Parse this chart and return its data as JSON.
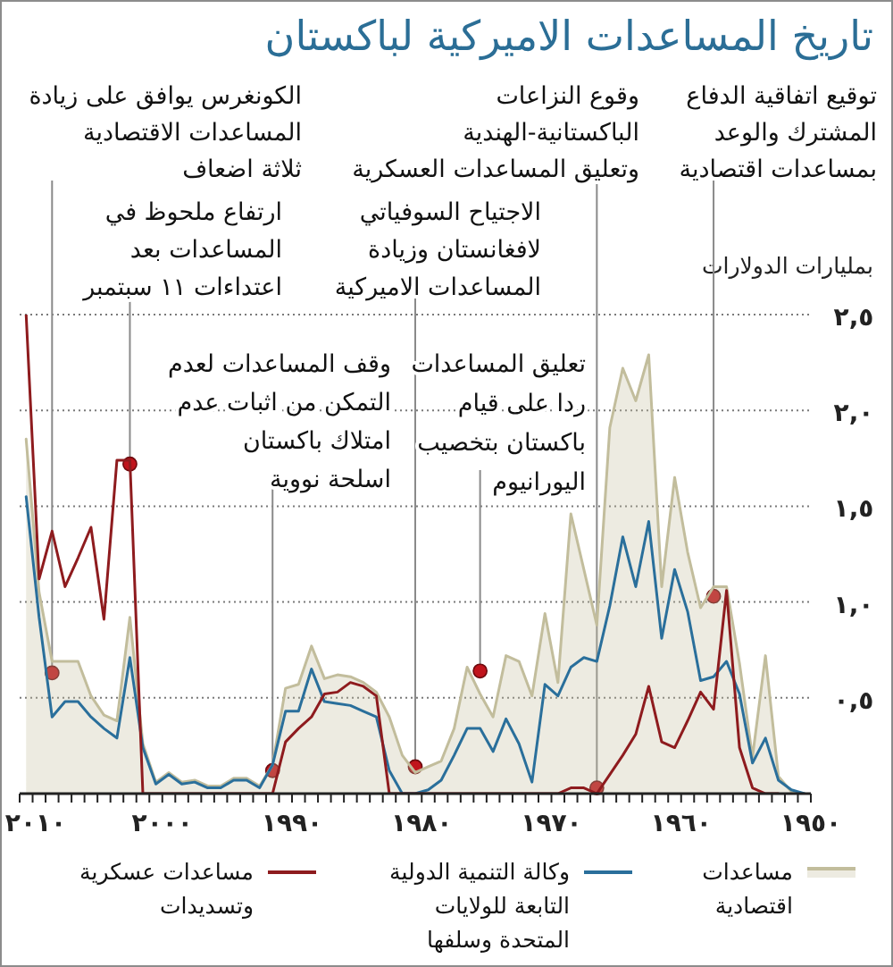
{
  "chart_data": {
    "type": "line",
    "title": "تاريخ المساعدات الاميركية لباكستان",
    "ylabel": "بمليارات الدولارات",
    "x": [
      2010.5,
      2009.5,
      2008.5,
      2007.5,
      2006.5,
      2005.5,
      2004.5,
      2003.5,
      2002.5,
      2001.5,
      2000.5,
      1999.5,
      1998.5,
      1997.5,
      1996.5,
      1995.5,
      1994.5,
      1993.5,
      1992.5,
      1991.5,
      1990.5,
      1989.5,
      1988.5,
      1987.5,
      1986.5,
      1985.5,
      1984.5,
      1983.5,
      1982.5,
      1981.5,
      1980.5,
      1979.5,
      1978.5,
      1977.5,
      1976.5,
      1975.5,
      1974.5,
      1973.5,
      1972.5,
      1971.5,
      1970.5,
      1969.5,
      1968.5,
      1967.5,
      1966.5,
      1965.5,
      1964.5,
      1963.5,
      1962.5,
      1961.5,
      1960.5,
      1959.5,
      1958.5,
      1957.5,
      1956.5,
      1955.5,
      1954.5,
      1953.5,
      1952.5,
      1951.5,
      1950.5
    ],
    "series": [
      {
        "name": "مساعدات اقتصادية",
        "type": "area",
        "color": "#c2bd9c",
        "values": [
          1.85,
          1.05,
          0.69,
          0.69,
          0.69,
          0.51,
          0.41,
          0.38,
          0.92,
          0.26,
          0.06,
          0.11,
          0.06,
          0.07,
          0.04,
          0.04,
          0.08,
          0.08,
          0.04,
          0.15,
          0.55,
          0.57,
          0.77,
          0.6,
          0.62,
          0.61,
          0.58,
          0.53,
          0.4,
          0.2,
          0.11,
          0.14,
          0.17,
          0.34,
          0.66,
          0.52,
          0.4,
          0.72,
          0.69,
          0.51,
          0.94,
          0.58,
          1.46,
          1.17,
          0.88,
          1.91,
          2.22,
          2.05,
          2.29,
          1.08,
          1.65,
          1.26,
          0.97,
          1.08,
          1.08,
          0.68,
          0.19,
          0.72,
          0.09,
          0.01,
          0
        ]
      },
      {
        "name": "وكالة التنمية الدولية التابعة للولايات المتحدة وسلفها",
        "type": "line",
        "color": "#2a6f9b",
        "values": [
          1.55,
          0.92,
          0.4,
          0.48,
          0.48,
          0.4,
          0.34,
          0.29,
          0.71,
          0.24,
          0.05,
          0.1,
          0.05,
          0.06,
          0.03,
          0.03,
          0.07,
          0.07,
          0.03,
          0.15,
          0.43,
          0.43,
          0.65,
          0.48,
          0.47,
          0.46,
          0.43,
          0.4,
          0.12,
          0,
          0,
          0.02,
          0.07,
          0.2,
          0.34,
          0.34,
          0.22,
          0.39,
          0.26,
          0.06,
          0.57,
          0.51,
          0.66,
          0.71,
          0.69,
          0.98,
          1.34,
          1.08,
          1.42,
          0.81,
          1.17,
          0.95,
          0.59,
          0.61,
          0.69,
          0.52,
          0.16,
          0.29,
          0.07,
          0.02,
          0
        ]
      },
      {
        "name": "مساعدات عسكرية وتسديدات",
        "type": "line",
        "color": "#8e1b1e",
        "values": [
          2.5,
          1.12,
          1.37,
          1.08,
          1.23,
          1.39,
          0.91,
          1.74,
          1.74,
          0,
          0,
          0,
          0,
          0,
          0,
          0,
          0,
          0,
          0,
          0,
          0.27,
          0.34,
          0.4,
          0.52,
          0.53,
          0.58,
          0.56,
          0.51,
          0,
          0,
          0,
          0,
          0,
          0,
          0,
          0,
          0,
          0,
          0,
          0,
          0,
          0,
          0.03,
          0.03,
          0,
          0.1,
          0.2,
          0.31,
          0.56,
          0.27,
          0.24,
          0.38,
          0.53,
          0.44,
          1.06,
          0.24,
          0.03,
          0,
          0,
          null,
          null
        ]
      }
    ],
    "xlim": [
      2011,
      1950
    ],
    "xticks": [
      {
        "value": 2011,
        "label": null
      },
      {
        "value": 2010,
        "label": "٢٠١٠"
      },
      {
        "value": 2009,
        "label": null
      },
      {
        "value": 2008,
        "label": null
      },
      {
        "value": 2007,
        "label": null
      },
      {
        "value": 2006,
        "label": null
      },
      {
        "value": 2005,
        "label": null
      },
      {
        "value": 2004,
        "label": null
      },
      {
        "value": 2003,
        "label": null
      },
      {
        "value": 2002,
        "label": null
      },
      {
        "value": 2001,
        "label": null
      },
      {
        "value": 2000,
        "label": "٢٠٠٠"
      },
      {
        "value": 1999,
        "label": null
      },
      {
        "value": 1998,
        "label": null
      },
      {
        "value": 1997,
        "label": null
      },
      {
        "value": 1996,
        "label": null
      },
      {
        "value": 1995,
        "label": null
      },
      {
        "value": 1994,
        "label": null
      },
      {
        "value": 1993,
        "label": null
      },
      {
        "value": 1992,
        "label": null
      },
      {
        "value": 1991,
        "label": null
      },
      {
        "value": 1990,
        "label": "١٩٩٠"
      },
      {
        "value": 1989,
        "label": null
      },
      {
        "value": 1988,
        "label": null
      },
      {
        "value": 1987,
        "label": null
      },
      {
        "value": 1986,
        "label": null
      },
      {
        "value": 1985,
        "label": null
      },
      {
        "value": 1984,
        "label": null
      },
      {
        "value": 1983,
        "label": null
      },
      {
        "value": 1982,
        "label": null
      },
      {
        "value": 1981,
        "label": null
      },
      {
        "value": 1980,
        "label": "١٩٨٠"
      },
      {
        "value": 1979,
        "label": null
      },
      {
        "value": 1978,
        "label": null
      },
      {
        "value": 1977,
        "label": null
      },
      {
        "value": 1976,
        "label": null
      },
      {
        "value": 1975,
        "label": null
      },
      {
        "value": 1974,
        "label": null
      },
      {
        "value": 1973,
        "label": null
      },
      {
        "value": 1972,
        "label": null
      },
      {
        "value": 1971,
        "label": null
      },
      {
        "value": 1970,
        "label": "١٩٧٠"
      },
      {
        "value": 1969,
        "label": null
      },
      {
        "value": 1968,
        "label": null
      },
      {
        "value": 1967,
        "label": null
      },
      {
        "value": 1966,
        "label": null
      },
      {
        "value": 1965,
        "label": null
      },
      {
        "value": 1964,
        "label": null
      },
      {
        "value": 1963,
        "label": null
      },
      {
        "value": 1962,
        "label": null
      },
      {
        "value": 1961,
        "label": null
      },
      {
        "value": 1960,
        "label": "١٩٦٠"
      },
      {
        "value": 1959,
        "label": null
      },
      {
        "value": 1958,
        "label": null
      },
      {
        "value": 1957,
        "label": null
      },
      {
        "value": 1956,
        "label": null
      },
      {
        "value": 1955,
        "label": null
      },
      {
        "value": 1954,
        "label": null
      },
      {
        "value": 1953,
        "label": null
      },
      {
        "value": 1952,
        "label": null
      },
      {
        "value": 1951,
        "label": null
      },
      {
        "value": 1950,
        "label": "١٩٥٠"
      }
    ],
    "ylim": [
      0,
      2.5
    ],
    "yticks": [
      {
        "value": 0.5,
        "label": "٠,٥"
      },
      {
        "value": 1,
        "label": "١,٠"
      },
      {
        "value": 1.5,
        "label": "١,٥"
      },
      {
        "value": 2,
        "label": "٢,٠"
      },
      {
        "value": 2.5,
        "label": "٢,٥"
      }
    ],
    "grid": "y",
    "legend": "bottom",
    "annotations": [
      {
        "text": "توقيع اتفاقية الدفاع\nالمشترك والوعد\nبمساعدات اقتصادية",
        "x": 1957.5,
        "y": 1.03
      },
      {
        "text": "وقوع النزاعات\nالباكستانية-الهندية\nوتعليق المساعدات العسكرية",
        "x": 1966.5,
        "y": 0.03
      },
      {
        "text": "الكونغرس يوافق على زيادة\nالمساعدات الاقتصادية\nثلاثة اضعاف",
        "x": 2008.5,
        "y": 0.63
      },
      {
        "text": "الاجتياح السوفياتي\nلافغانستان وزيادة\nالمساعدات الاميركية",
        "x": 1980.5,
        "y": 0.14
      },
      {
        "text": "ارتفاع ملحوظ في\nالمساعدات بعد\nاعتداءات ١١ سبتمبر",
        "x": 2002.5,
        "y": 1.72
      },
      {
        "text": "تعليق المساعدات\nردا على قيام\nباكستان بتخصيب\nاليورانيوم",
        "x": 1975.5,
        "y": 0.64
      },
      {
        "text": "وقف المساعدات لعدم\nالتمكن من اثبات عدم\nامتلاك باكستان\nاسلحة نووية",
        "x": 1991.5,
        "y": 0.12
      }
    ]
  }
}
